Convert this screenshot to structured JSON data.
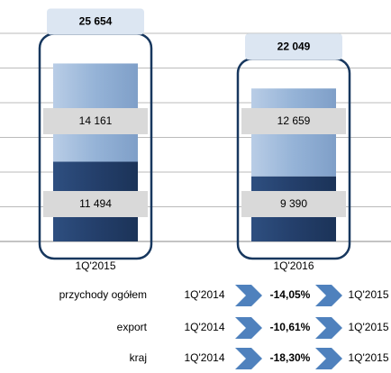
{
  "chart_data": {
    "type": "stacked-bar",
    "categories": [
      "1Q'2015",
      "1Q'2016"
    ],
    "series": [
      {
        "color": "#243f6b",
        "values": [
          11494,
          9390
        ],
        "value_labels": [
          "11 494",
          "9 390"
        ]
      },
      {
        "color": "#95b3d7",
        "values": [
          14161,
          12659
        ],
        "value_labels": [
          "14 161",
          "12 659"
        ]
      }
    ],
    "totals": {
      "values": [
        25654,
        22049
      ],
      "value_labels": [
        "25 654",
        "22 049"
      ]
    },
    "ylim": [
      0,
      30000
    ],
    "yticks": [
      0,
      5000,
      10000,
      15000,
      20000,
      25000,
      30000
    ],
    "grid": true
  },
  "comparison": {
    "rows": [
      {
        "label": "przychody ogółem",
        "from": "1Q'2014",
        "change": "-14,05%",
        "to": "1Q'2015"
      },
      {
        "label": "export",
        "from": "1Q'2014",
        "change": "-10,61%",
        "to": "1Q'2015"
      },
      {
        "label": "kraj",
        "from": "1Q'2014",
        "change": "-18,30%",
        "to": "1Q'2015"
      }
    ]
  }
}
